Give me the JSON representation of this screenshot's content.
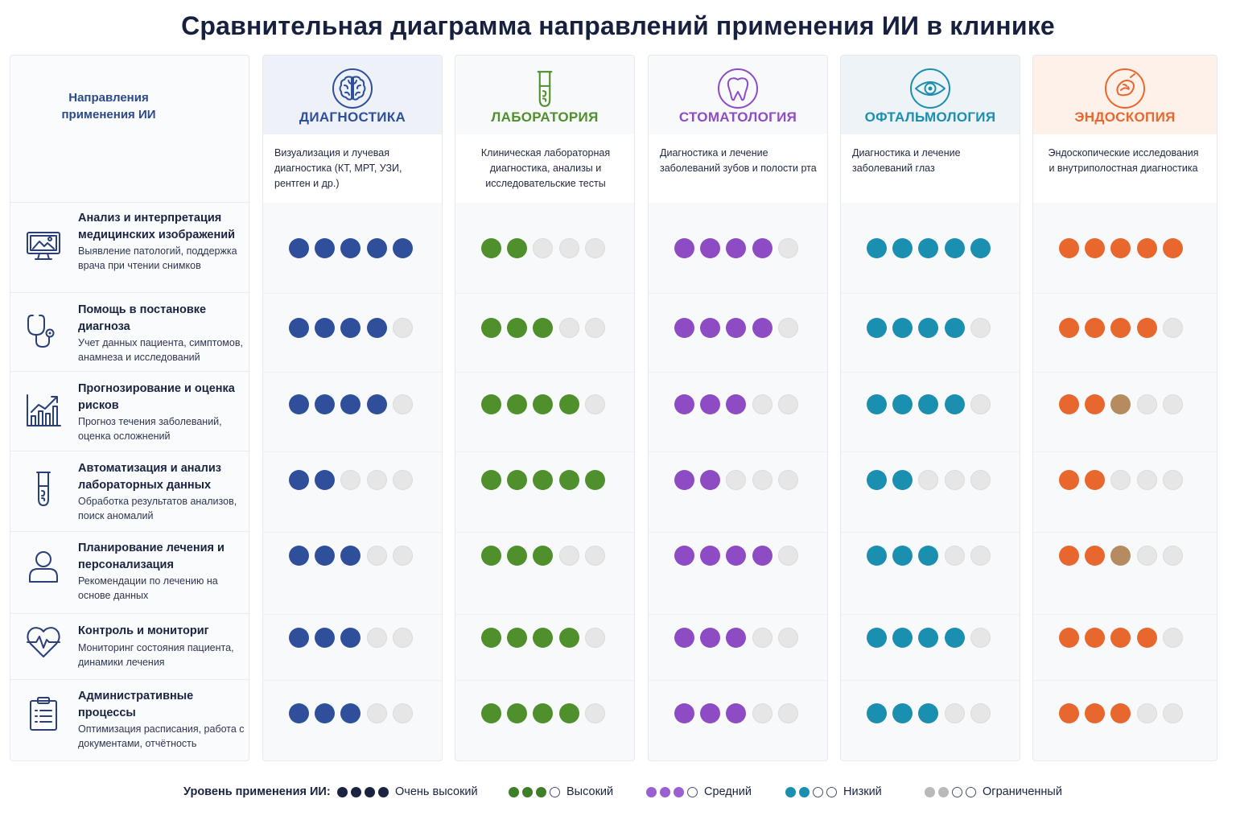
{
  "title": "Сравнительная диаграмма направлений применения ИИ в клинике",
  "left_header": "Направления применения ИИ",
  "categories": [
    {
      "title": "Анализ и интерпретация медицинских изображений",
      "desc": "Выявление патологий, поддержка врача при чтении снимков",
      "icon": "monitor-icon"
    },
    {
      "title": "Помощь в постановке диагноза",
      "desc": "Учет данных пациента, симптомов, анамнеза и исследований",
      "icon": "stethoscope-icon"
    },
    {
      "title": "Прогнозирование и оценка рисков",
      "desc": "Прогноз течения заболеваний, оценка осложнений",
      "icon": "bar-chart-icon"
    },
    {
      "title": "Автоматизация и анализ лабораторных данных",
      "desc": "Обработка результатов анализов, поиск аномалий",
      "icon": "test-tube-icon"
    },
    {
      "title": "Планирование лечения и персонализация",
      "desc": "Рекомендации по лечению на основе данных",
      "icon": "person-icon"
    },
    {
      "title": "Контроль и мониториг",
      "desc": "Мониторинг состояния пациента, динамики лечения",
      "icon": "heart-pulse-icon"
    },
    {
      "title": "Административные процессы",
      "desc": "Оптимизация расписания, работа с документами, отчётность",
      "icon": "clipboard-icon"
    }
  ],
  "columns": [
    {
      "name": "ДИАГНОСТИКА",
      "desc": "Визуализация и лучевая диагностика (КТ, МРТ, УЗИ, рентген и др.)",
      "color": "#2f4f9a",
      "head_bg": "#eef2f8",
      "icon": "brain-icon",
      "desc_align": "left"
    },
    {
      "name": "ЛАБОРАТОРИЯ",
      "desc": "Клиническая лабораторная диагностика, анализы и исследовательские тесты",
      "color": "#4f8f2c",
      "head_bg": "#f8f9fb",
      "icon": "test-tube-icon",
      "desc_align": "center"
    },
    {
      "name": "СТОМАТОЛОГИЯ",
      "desc": "Диагностика и лечение заболеваний зубов и полости рта",
      "color": "#8e4cc4",
      "head_bg": "#f8f9fb",
      "icon": "tooth-icon",
      "desc_align": "left"
    },
    {
      "name": "ОФТАЛЬМОЛОГИЯ",
      "desc": "Диагностика и лечение заболеваний глаз",
      "color": "#1a8fb0",
      "head_bg": "#eef3f8",
      "icon": "eye-icon",
      "desc_align": "left"
    },
    {
      "name": "ЭНДОСКОПИЯ",
      "desc": "Эндоскопические исследования и внутриполостная диагностика",
      "color": "#e8672e",
      "head_bg": "#fdf1ea",
      "icon": "endoscopy-icon",
      "desc_align": "center"
    }
  ],
  "chart_data": {
    "type": "table",
    "title": "Сравнительная диаграмма направлений применения ИИ в клинике",
    "max_level": 5,
    "rows": [
      "Анализ и интерпретация медицинских изображений",
      "Помощь в постановке диагноза",
      "Прогнозирование и оценка рисков",
      "Автоматизация и анализ лабораторных данных",
      "Планирование лечения и персонализация",
      "Контроль и мониториг",
      "Административные процессы"
    ],
    "series": [
      {
        "name": "ДИАГНОСТИКА",
        "values": [
          5,
          4,
          4,
          2,
          3,
          3,
          3
        ]
      },
      {
        "name": "ЛАБОРАТОРИЯ",
        "values": [
          2,
          3,
          4,
          5,
          3,
          4,
          4
        ]
      },
      {
        "name": "СТОМАТОЛОГИЯ",
        "values": [
          4,
          4,
          3,
          2,
          4,
          3,
          3
        ]
      },
      {
        "name": "ОФТАЛЬМОЛОГИЯ",
        "values": [
          5,
          4,
          4,
          2,
          3,
          4,
          3
        ]
      },
      {
        "name": "ЭНДОСКОПИЯ",
        "values": [
          5,
          4,
          3,
          2,
          3,
          4,
          3
        ]
      }
    ],
    "highlight_cells": [
      {
        "series": "ЭНДОСКОПИЯ",
        "row": 2,
        "dot": 3,
        "color": "#b58b5f"
      },
      {
        "series": "ЭНДОСКОПИЯ",
        "row": 4,
        "dot": 3,
        "color": "#b58b5f"
      }
    ],
    "empty_dot_color": "#e6e6e6"
  },
  "legend": {
    "label": "Уровень применения ИИ:",
    "items": [
      {
        "text": "Очень высокий",
        "filled": 4,
        "total": 4,
        "color": "#1a2340"
      },
      {
        "text": "Высокий",
        "filled": 3,
        "total": 4,
        "color": "#3f7f2a"
      },
      {
        "text": "Средний",
        "filled": 3,
        "total": 4,
        "color": "#9b5fd0"
      },
      {
        "text": "Низкий",
        "filled": 2,
        "total": 4,
        "color": "#1a8fb0"
      },
      {
        "text": "Ограниченный",
        "filled": 2,
        "total": 4,
        "color": "#b9b9b9"
      }
    ]
  }
}
